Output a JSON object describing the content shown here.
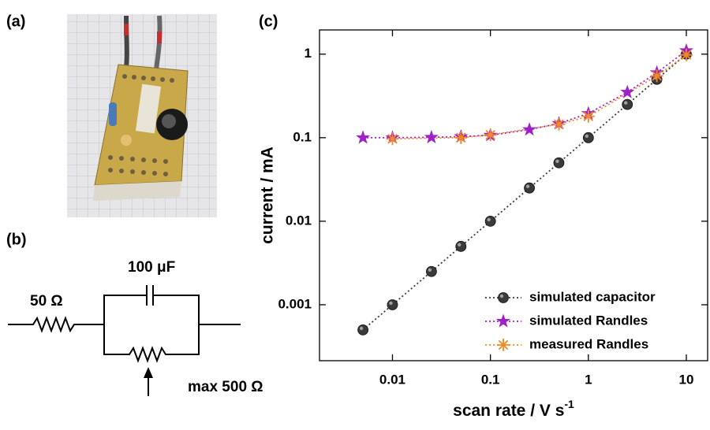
{
  "figure": {
    "panel_a": "(a)",
    "panel_b": "(b)",
    "panel_c": "(c)",
    "circuit": {
      "series_resistor": "50 Ω",
      "capacitor": "100 μF",
      "variable_resistor": "max 500 Ω"
    }
  },
  "chart_data": {
    "type": "scatter",
    "xlabel": "scan rate / V s",
    "xlabel_superscript": "-1",
    "ylabel": "current / mA",
    "xscale": "log",
    "yscale": "log",
    "xlim": [
      0.0018,
      16.5
    ],
    "ylim": [
      0.000214,
      1.95
    ],
    "xticks": [
      0.01,
      0.1,
      1,
      10
    ],
    "yticks": [
      0.001,
      0.01,
      0.1,
      1
    ],
    "legend": "lower right",
    "line_style": "dotted",
    "series": [
      {
        "name": "simulated capacitor",
        "color": "#3a3a3a",
        "marker": "circle",
        "x": [
          0.005,
          0.01,
          0.025,
          0.05,
          0.1,
          0.25,
          0.5,
          1,
          2.5,
          5,
          10
        ],
        "values": [
          0.0005,
          0.001,
          0.0025,
          0.005,
          0.01,
          0.025,
          0.05,
          0.1,
          0.25,
          0.5,
          1
        ]
      },
      {
        "name": "simulated Randles",
        "color": "#a020c8",
        "marker": "star",
        "x": [
          0.005,
          0.01,
          0.025,
          0.05,
          0.1,
          0.25,
          0.5,
          1,
          2.5,
          5,
          10
        ],
        "values": [
          0.1,
          0.1,
          0.101,
          0.103,
          0.107,
          0.125,
          0.148,
          0.195,
          0.35,
          0.6,
          1.1
        ]
      },
      {
        "name": "measured Randles",
        "color": "#f08a24",
        "marker": "asterisk",
        "x": [
          0.01,
          0.05,
          0.1,
          0.5,
          1,
          5,
          10
        ],
        "values": [
          0.097,
          0.1,
          0.108,
          0.145,
          0.18,
          0.55,
          0.98
        ]
      }
    ]
  }
}
